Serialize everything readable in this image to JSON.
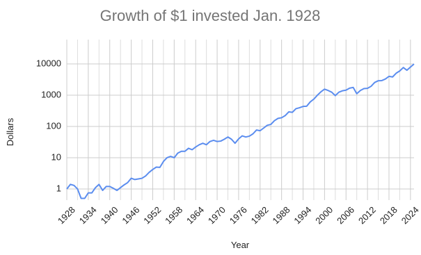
{
  "chart_data": {
    "type": "line",
    "title": "Growth of $1 invested Jan. 1928",
    "xlabel": "Year",
    "ylabel": "Dollars",
    "x": [
      1928,
      1929,
      1930,
      1931,
      1932,
      1933,
      1934,
      1935,
      1936,
      1937,
      1938,
      1939,
      1940,
      1941,
      1942,
      1943,
      1944,
      1945,
      1946,
      1947,
      1948,
      1949,
      1950,
      1951,
      1952,
      1953,
      1954,
      1955,
      1956,
      1957,
      1958,
      1959,
      1960,
      1961,
      1962,
      1963,
      1964,
      1965,
      1966,
      1967,
      1968,
      1969,
      1970,
      1971,
      1972,
      1973,
      1974,
      1975,
      1976,
      1977,
      1978,
      1979,
      1980,
      1981,
      1982,
      1983,
      1984,
      1985,
      1986,
      1987,
      1988,
      1989,
      1990,
      1991,
      1992,
      1993,
      1994,
      1995,
      1996,
      1997,
      1998,
      1999,
      2000,
      2001,
      2002,
      2003,
      2004,
      2005,
      2006,
      2007,
      2008,
      2009,
      2010,
      2011,
      2012,
      2013,
      2014,
      2015,
      2016,
      2017,
      2018,
      2019,
      2020,
      2021,
      2022,
      2023,
      2024,
      2025
    ],
    "series": [
      {
        "color": "#5b8def",
        "values": [
          1,
          1.4,
          1.3,
          1.0,
          0.5,
          0.5,
          0.75,
          0.75,
          1.1,
          1.4,
          0.9,
          1.2,
          1.2,
          1.05,
          0.9,
          1.1,
          1.35,
          1.6,
          2.2,
          2.0,
          2.1,
          2.2,
          2.6,
          3.4,
          4.2,
          5.0,
          4.9,
          7.6,
          10,
          11,
          10,
          14,
          16,
          16,
          20,
          18,
          22,
          26,
          29,
          26,
          33,
          36,
          33,
          34,
          39,
          46,
          39,
          29,
          40,
          50,
          46,
          49,
          58,
          77,
          73,
          89,
          109,
          116,
          153,
          181,
          190,
          222,
          292,
          283,
          369,
          397,
          437,
          443,
          609,
          749,
          999,
          1285,
          1555,
          1413,
          1245,
          970,
          1248,
          1384,
          1452,
          1681,
          1773,
          1117,
          1413,
          1626,
          1660,
          1926,
          2549,
          2898,
          2938,
          3290,
          4008,
          3832,
          5039,
          5967,
          7680,
          6289,
          7944,
          9932
        ]
      }
    ],
    "xlim": [
      1928,
      2025
    ],
    "xticks": [
      1928,
      1934,
      1940,
      1946,
      1952,
      1958,
      1964,
      1970,
      1976,
      1982,
      1988,
      1994,
      2000,
      2006,
      2012,
      2018,
      2024
    ],
    "x_minor_ticks": [
      1931,
      1937,
      1943,
      1949,
      1955,
      1961,
      1967,
      1973,
      1979,
      1985,
      1991,
      1997,
      2003,
      2009,
      2015,
      2021
    ],
    "ylim": [
      0.44,
      60000
    ],
    "yticks": [
      1,
      10,
      100,
      1000,
      10000
    ],
    "log_y": true,
    "grid": true
  }
}
